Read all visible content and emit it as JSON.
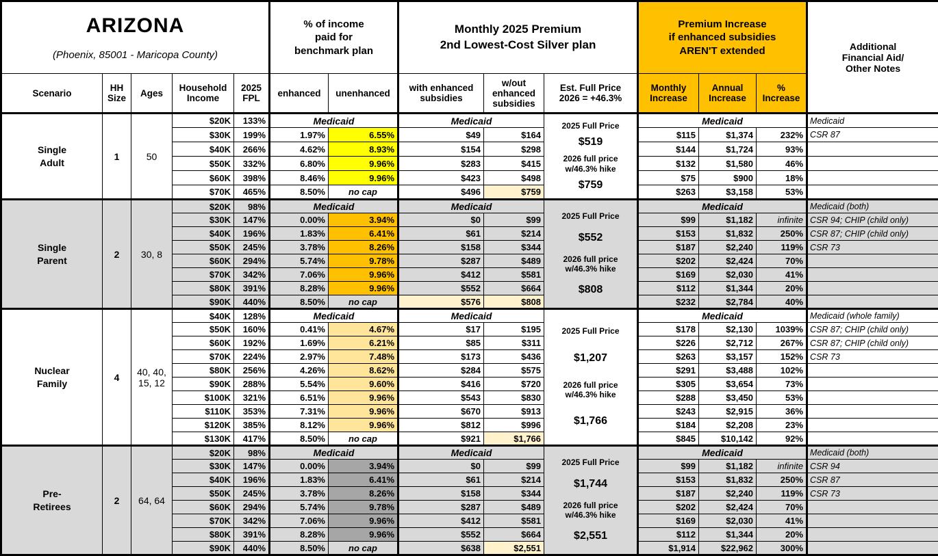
{
  "header": {
    "title": "ARIZONA",
    "subtitle": "(Phoenix, 85001 - Maricopa County)",
    "group_pct_income": "% of income\npaid for\nbenchmark plan",
    "group_premium": "Monthly 2025 Premium\n2nd Lowest-Cost Silver plan",
    "group_increase": "Premium Increase\nif enhanced subsidies\nAREN'T extended",
    "group_notes": "Additional\nFinancial Aid/\nOther Notes",
    "cols": {
      "scenario": "Scenario",
      "hh_size": "HH\nSize",
      "ages": "Ages",
      "income": "Household\nIncome",
      "fpl": "2025\nFPL",
      "enhanced": "enhanced",
      "unenhanced": "unenhanced",
      "with_sub": "with enhanced\nsubsidies",
      "wout_sub": "w/out\nenhanced\nsubsidies",
      "full_price": "Est. Full Price\n2026 = +46.3%",
      "monthly": "Monthly\nIncrease",
      "annual": "Annual\nIncrease",
      "pct": "%\nIncrease"
    }
  },
  "colors": {
    "header_orange": "#FFC000",
    "section_gray": "#D9D9D9",
    "cream": "#FFF2CC",
    "yellow": "#FFFF00",
    "orange": "#FFC000",
    "light_orange": "#FFE599",
    "dark_gray": "#A6A6A6"
  },
  "sections": [
    {
      "name": "Single\nAdult",
      "hh_size": "1",
      "ages": "50",
      "shaded": false,
      "highlight": "#FFFF00",
      "full_price": {
        "label_2025": "2025 Full Price",
        "price_2025": "$519",
        "label_2026": "2026 full price\nw/46.3% hike",
        "price_2026": "$759"
      },
      "medicaid_row": {
        "income": "$20K",
        "fpl": "133%",
        "pct": "Medicaid",
        "premium": "Medicaid",
        "increase": "Medicaid",
        "note": "Medicaid"
      },
      "rows": [
        {
          "income": "$30K",
          "fpl": "199%",
          "enhanced": "1.97%",
          "unenhanced": "6.55%",
          "with_sub": "$49",
          "wout_sub": "$164",
          "with_cream": false,
          "wout_cream": false,
          "monthly": "$115",
          "annual": "$1,374",
          "pct": "232%",
          "note": "CSR 87"
        },
        {
          "income": "$40K",
          "fpl": "266%",
          "enhanced": "4.62%",
          "unenhanced": "8.93%",
          "with_sub": "$154",
          "wout_sub": "$298",
          "with_cream": false,
          "wout_cream": false,
          "monthly": "$144",
          "annual": "$1,724",
          "pct": "93%",
          "note": ""
        },
        {
          "income": "$50K",
          "fpl": "332%",
          "enhanced": "6.80%",
          "unenhanced": "9.96%",
          "with_sub": "$283",
          "wout_sub": "$415",
          "with_cream": false,
          "wout_cream": false,
          "monthly": "$132",
          "annual": "$1,580",
          "pct": "46%",
          "note": ""
        },
        {
          "income": "$60K",
          "fpl": "398%",
          "enhanced": "8.46%",
          "unenhanced": "9.96%",
          "with_sub": "$423",
          "wout_sub": "$498",
          "with_cream": false,
          "wout_cream": false,
          "monthly": "$75",
          "annual": "$900",
          "pct": "18%",
          "note": ""
        },
        {
          "income": "$70K",
          "fpl": "465%",
          "enhanced": "8.50%",
          "unenhanced": "no cap",
          "with_sub": "$496",
          "wout_sub": "$759",
          "with_cream": false,
          "wout_cream": true,
          "monthly": "$263",
          "annual": "$3,158",
          "pct": "53%",
          "note": ""
        }
      ]
    },
    {
      "name": "Single\nParent",
      "hh_size": "2",
      "ages": "30, 8",
      "shaded": true,
      "highlight": "#FFC000",
      "full_price": {
        "label_2025": "2025 Full Price",
        "price_2025": "$552",
        "label_2026": "2026 full price\nw/46.3% hike",
        "price_2026": "$808"
      },
      "medicaid_row": {
        "income": "$20K",
        "fpl": "98%",
        "pct": "Medicaid",
        "premium": "Medicaid",
        "increase": "Medicaid",
        "note": "Medicaid (both)"
      },
      "rows": [
        {
          "income": "$30K",
          "fpl": "147%",
          "enhanced": "0.00%",
          "unenhanced": "3.94%",
          "with_sub": "$0",
          "wout_sub": "$99",
          "with_cream": false,
          "wout_cream": false,
          "monthly": "$99",
          "annual": "$1,182",
          "pct": "infinite",
          "note": "CSR 94; CHIP (child only)"
        },
        {
          "income": "$40K",
          "fpl": "196%",
          "enhanced": "1.83%",
          "unenhanced": "6.41%",
          "with_sub": "$61",
          "wout_sub": "$214",
          "with_cream": false,
          "wout_cream": false,
          "monthly": "$153",
          "annual": "$1,832",
          "pct": "250%",
          "note": "CSR 87; CHIP (child only)"
        },
        {
          "income": "$50K",
          "fpl": "245%",
          "enhanced": "3.78%",
          "unenhanced": "8.26%",
          "with_sub": "$158",
          "wout_sub": "$344",
          "with_cream": false,
          "wout_cream": false,
          "monthly": "$187",
          "annual": "$2,240",
          "pct": "119%",
          "note": "CSR 73"
        },
        {
          "income": "$60K",
          "fpl": "294%",
          "enhanced": "5.74%",
          "unenhanced": "9.78%",
          "with_sub": "$287",
          "wout_sub": "$489",
          "with_cream": false,
          "wout_cream": false,
          "monthly": "$202",
          "annual": "$2,424",
          "pct": "70%",
          "note": ""
        },
        {
          "income": "$70K",
          "fpl": "342%",
          "enhanced": "7.06%",
          "unenhanced": "9.96%",
          "with_sub": "$412",
          "wout_sub": "$581",
          "with_cream": false,
          "wout_cream": false,
          "monthly": "$169",
          "annual": "$2,030",
          "pct": "41%",
          "note": ""
        },
        {
          "income": "$80K",
          "fpl": "391%",
          "enhanced": "8.28%",
          "unenhanced": "9.96%",
          "with_sub": "$552",
          "wout_sub": "$664",
          "with_cream": false,
          "wout_cream": false,
          "monthly": "$112",
          "annual": "$1,344",
          "pct": "20%",
          "note": ""
        },
        {
          "income": "$90K",
          "fpl": "440%",
          "enhanced": "8.50%",
          "unenhanced": "no cap",
          "with_sub": "$576",
          "wout_sub": "$808",
          "with_cream": true,
          "wout_cream": true,
          "monthly": "$232",
          "annual": "$2,784",
          "pct": "40%",
          "note": ""
        }
      ]
    },
    {
      "name": "Nuclear\nFamily",
      "hh_size": "4",
      "ages": "40, 40,\n15, 12",
      "shaded": false,
      "highlight": "#FFE599",
      "full_price": {
        "label_2025": "2025 Full Price",
        "price_2025": "$1,207",
        "label_2026": "2026 full price\nw/46.3% hike",
        "price_2026": "$1,766"
      },
      "medicaid_row": {
        "income": "$40K",
        "fpl": "128%",
        "pct": "Medicaid",
        "premium": "Medicaid",
        "increase": "Medicaid",
        "note": "Medicaid (whole family)"
      },
      "rows": [
        {
          "income": "$50K",
          "fpl": "160%",
          "enhanced": "0.41%",
          "unenhanced": "4.67%",
          "with_sub": "$17",
          "wout_sub": "$195",
          "with_cream": false,
          "wout_cream": false,
          "monthly": "$178",
          "annual": "$2,130",
          "pct": "1039%",
          "note": "CSR 87; CHIP (child only)"
        },
        {
          "income": "$60K",
          "fpl": "192%",
          "enhanced": "1.69%",
          "unenhanced": "6.21%",
          "with_sub": "$85",
          "wout_sub": "$311",
          "with_cream": false,
          "wout_cream": false,
          "monthly": "$226",
          "annual": "$2,712",
          "pct": "267%",
          "note": "CSR 87; CHIP (child only)"
        },
        {
          "income": "$70K",
          "fpl": "224%",
          "enhanced": "2.97%",
          "unenhanced": "7.48%",
          "with_sub": "$173",
          "wout_sub": "$436",
          "with_cream": false,
          "wout_cream": false,
          "monthly": "$263",
          "annual": "$3,157",
          "pct": "152%",
          "note": "CSR 73"
        },
        {
          "income": "$80K",
          "fpl": "256%",
          "enhanced": "4.26%",
          "unenhanced": "8.62%",
          "with_sub": "$284",
          "wout_sub": "$575",
          "with_cream": false,
          "wout_cream": false,
          "monthly": "$291",
          "annual": "$3,488",
          "pct": "102%",
          "note": ""
        },
        {
          "income": "$90K",
          "fpl": "288%",
          "enhanced": "5.54%",
          "unenhanced": "9.60%",
          "with_sub": "$416",
          "wout_sub": "$720",
          "with_cream": false,
          "wout_cream": false,
          "monthly": "$305",
          "annual": "$3,654",
          "pct": "73%",
          "note": ""
        },
        {
          "income": "$100K",
          "fpl": "321%",
          "enhanced": "6.51%",
          "unenhanced": "9.96%",
          "with_sub": "$543",
          "wout_sub": "$830",
          "with_cream": false,
          "wout_cream": false,
          "monthly": "$288",
          "annual": "$3,450",
          "pct": "53%",
          "note": ""
        },
        {
          "income": "$110K",
          "fpl": "353%",
          "enhanced": "7.31%",
          "unenhanced": "9.96%",
          "with_sub": "$670",
          "wout_sub": "$913",
          "with_cream": false,
          "wout_cream": false,
          "monthly": "$243",
          "annual": "$2,915",
          "pct": "36%",
          "note": ""
        },
        {
          "income": "$120K",
          "fpl": "385%",
          "enhanced": "8.12%",
          "unenhanced": "9.96%",
          "with_sub": "$812",
          "wout_sub": "$996",
          "with_cream": false,
          "wout_cream": false,
          "monthly": "$184",
          "annual": "$2,208",
          "pct": "23%",
          "note": ""
        },
        {
          "income": "$130K",
          "fpl": "417%",
          "enhanced": "8.50%",
          "unenhanced": "no cap",
          "with_sub": "$921",
          "wout_sub": "$1,766",
          "with_cream": false,
          "wout_cream": true,
          "monthly": "$845",
          "annual": "$10,142",
          "pct": "92%",
          "note": ""
        }
      ]
    },
    {
      "name": "Pre-\nRetirees",
      "hh_size": "2",
      "ages": "64, 64",
      "shaded": true,
      "highlight": "#A6A6A6",
      "full_price": {
        "label_2025": "2025 Full Price",
        "price_2025": "$1,744",
        "label_2026": "2026 full price\nw/46.3% hike",
        "price_2026": "$2,551"
      },
      "medicaid_row": {
        "income": "$20K",
        "fpl": "98%",
        "pct": "Medicaid",
        "premium": "Medicaid",
        "increase": "Medicaid",
        "note": "Medicaid (both)"
      },
      "rows": [
        {
          "income": "$30K",
          "fpl": "147%",
          "enhanced": "0.00%",
          "unenhanced": "3.94%",
          "with_sub": "$0",
          "wout_sub": "$99",
          "with_cream": false,
          "wout_cream": false,
          "monthly": "$99",
          "annual": "$1,182",
          "pct": "infinite",
          "note": "CSR 94"
        },
        {
          "income": "$40K",
          "fpl": "196%",
          "enhanced": "1.83%",
          "unenhanced": "6.41%",
          "with_sub": "$61",
          "wout_sub": "$214",
          "with_cream": false,
          "wout_cream": false,
          "monthly": "$153",
          "annual": "$1,832",
          "pct": "250%",
          "note": "CSR 87"
        },
        {
          "income": "$50K",
          "fpl": "245%",
          "enhanced": "3.78%",
          "unenhanced": "8.26%",
          "with_sub": "$158",
          "wout_sub": "$344",
          "with_cream": false,
          "wout_cream": false,
          "monthly": "$187",
          "annual": "$2,240",
          "pct": "119%",
          "note": "CSR 73"
        },
        {
          "income": "$60K",
          "fpl": "294%",
          "enhanced": "5.74%",
          "unenhanced": "9.78%",
          "with_sub": "$287",
          "wout_sub": "$489",
          "with_cream": false,
          "wout_cream": false,
          "monthly": "$202",
          "annual": "$2,424",
          "pct": "70%",
          "note": ""
        },
        {
          "income": "$70K",
          "fpl": "342%",
          "enhanced": "7.06%",
          "unenhanced": "9.96%",
          "with_sub": "$412",
          "wout_sub": "$581",
          "with_cream": false,
          "wout_cream": false,
          "monthly": "$169",
          "annual": "$2,030",
          "pct": "41%",
          "note": ""
        },
        {
          "income": "$80K",
          "fpl": "391%",
          "enhanced": "8.28%",
          "unenhanced": "9.96%",
          "with_sub": "$552",
          "wout_sub": "$664",
          "with_cream": false,
          "wout_cream": false,
          "monthly": "$112",
          "annual": "$1,344",
          "pct": "20%",
          "note": ""
        },
        {
          "income": "$90K",
          "fpl": "440%",
          "enhanced": "8.50%",
          "unenhanced": "no cap",
          "with_sub": "$638",
          "wout_sub": "$2,551",
          "with_cream": false,
          "wout_cream": true,
          "monthly": "$1,914",
          "annual": "$22,962",
          "pct": "300%",
          "note": ""
        }
      ]
    }
  ]
}
